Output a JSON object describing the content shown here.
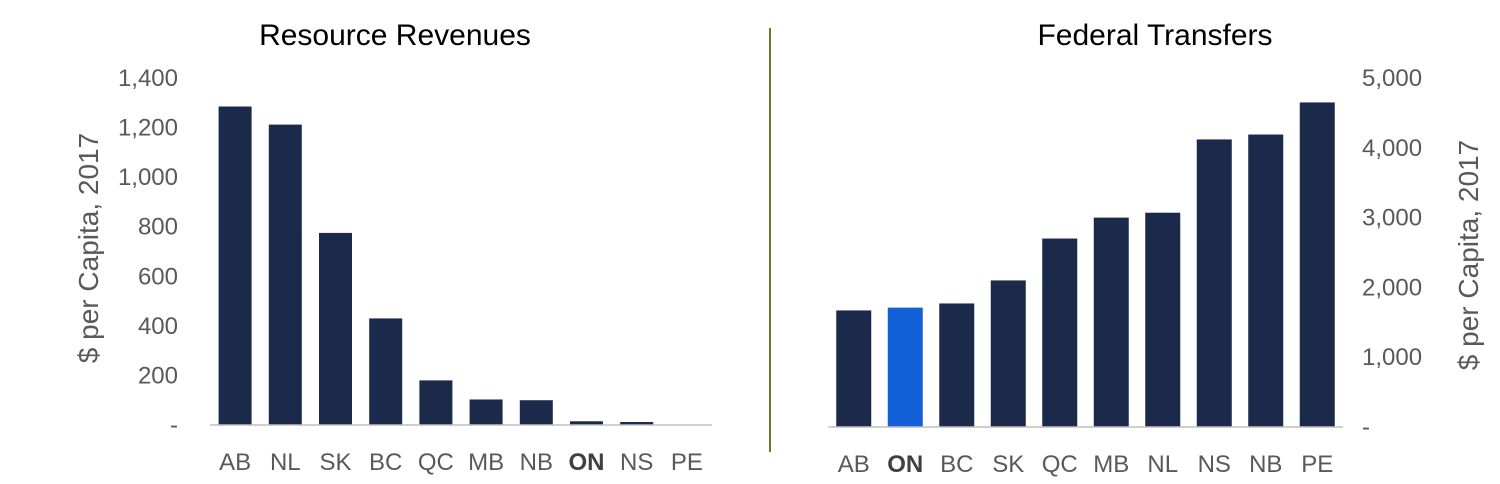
{
  "chart_data": [
    {
      "type": "bar",
      "title": "Resource Revenues",
      "ylabel": "$ per Capita, 2017",
      "categories": [
        "AB",
        "NL",
        "SK",
        "BC",
        "QC",
        "MB",
        "NB",
        "ON",
        "NS",
        "PE"
      ],
      "values": [
        1285,
        1212,
        775,
        430,
        180,
        103,
        100,
        15,
        12,
        0
      ],
      "highlight_category": "ON",
      "ylim": [
        0,
        1400
      ],
      "yticks": [
        "-",
        "200",
        "400",
        "600",
        "800",
        "1,000",
        "1,200",
        "1,400"
      ],
      "y_axis_side": "left",
      "grid": false,
      "colors": {
        "bar": "#1b2a4a"
      }
    },
    {
      "type": "bar",
      "title": "Federal Transfers",
      "ylabel": "$ per Capita, 2017",
      "categories": [
        "AB",
        "ON",
        "BC",
        "SK",
        "QC",
        "MB",
        "NL",
        "NS",
        "NB",
        "PE"
      ],
      "values": [
        1670,
        1710,
        1770,
        2100,
        2700,
        3000,
        3070,
        4120,
        4190,
        4650
      ],
      "highlight_category": "ON",
      "ylim": [
        0,
        5000
      ],
      "yticks": [
        "-",
        "1,000",
        "2,000",
        "3,000",
        "4,000",
        "5,000"
      ],
      "y_axis_side": "right",
      "grid": false,
      "colors": {
        "bar": "#1b2a4a",
        "highlight": "#1160d8"
      }
    }
  ],
  "divider_color": "#6b7a2a"
}
